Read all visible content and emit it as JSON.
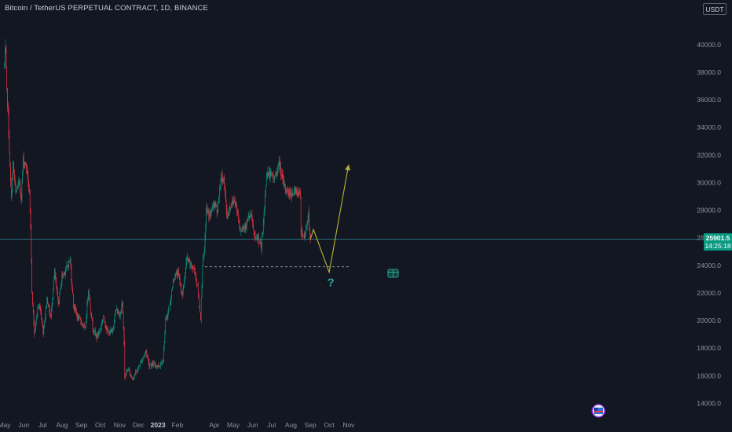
{
  "header": {
    "title": "Bitcoin / TetherUS PERPETUAL CONTRACT, 1D, BINANCE",
    "currency_button": "USDT"
  },
  "price_badge": {
    "price": "25901.5",
    "countdown": "14:25:18",
    "color": "#089981"
  },
  "projection": {
    "question_mark": "?",
    "support_level": 23900,
    "path": [
      {
        "date": "2023-09-01",
        "price": 25900
      },
      {
        "date": "2023-09-06",
        "price": 26600
      },
      {
        "date": "2023-10-01",
        "price": 23500
      },
      {
        "date": "2023-11-01",
        "price": 31300
      }
    ]
  },
  "chart_data": {
    "type": "candlestick",
    "title": "Bitcoin / TetherUS PERPETUAL CONTRACT, 1D, BINANCE",
    "interval": "1D",
    "y_axis_position": "right",
    "ylim": [
      13200,
      42800
    ],
    "y_ticks": [
      14000,
      16000,
      18000,
      20000,
      22000,
      24000,
      26000,
      28000,
      30000,
      32000,
      34000,
      36000,
      38000,
      40000
    ],
    "y_tick_labels": [
      "14000.0",
      "16000.0",
      "18000.0",
      "20000.0",
      "22000.0",
      "24000.0",
      "26000.0",
      "28000.0",
      "30000.0",
      "32000.0",
      "34000.0",
      "36000.0",
      "38000.0",
      "40000.0"
    ],
    "x_tick_labels": [
      "May",
      "Jun",
      "Jul",
      "Aug",
      "Sep",
      "Oct",
      "Nov",
      "Dec",
      "2023",
      "Feb",
      "Apr",
      "May",
      "Jun",
      "Jul",
      "Aug",
      "Sep",
      "Oct",
      "Nov"
    ],
    "x_tick_dates": [
      "2022-05-01",
      "2022-06-01",
      "2022-07-01",
      "2022-08-01",
      "2022-09-01",
      "2022-10-01",
      "2022-11-01",
      "2022-12-01",
      "2023-01-01",
      "2023-02-01",
      "2023-04-01",
      "2023-05-01",
      "2023-06-01",
      "2023-07-01",
      "2023-08-01",
      "2023-09-01",
      "2023-10-01",
      "2023-11-01"
    ],
    "up_color": "#089981",
    "down_color": "#f23645",
    "grid": false,
    "last_price": 25901.5,
    "close_path": [
      [
        "2022-05-01",
        38500
      ],
      [
        "2022-05-03",
        39600
      ],
      [
        "2022-05-05",
        36500
      ],
      [
        "2022-05-07",
        35000
      ],
      [
        "2022-05-10",
        31000
      ],
      [
        "2022-05-12",
        28800
      ],
      [
        "2022-05-15",
        31300
      ],
      [
        "2022-05-19",
        29200
      ],
      [
        "2022-05-24",
        30000
      ],
      [
        "2022-05-28",
        29000
      ],
      [
        "2022-05-31",
        31700
      ],
      [
        "2022-06-06",
        31000
      ],
      [
        "2022-06-10",
        29100
      ],
      [
        "2022-06-12",
        26500
      ],
      [
        "2022-06-14",
        22200
      ],
      [
        "2022-06-18",
        19000
      ],
      [
        "2022-06-23",
        20900
      ],
      [
        "2022-06-27",
        21000
      ],
      [
        "2022-07-02",
        19200
      ],
      [
        "2022-07-08",
        21600
      ],
      [
        "2022-07-14",
        20200
      ],
      [
        "2022-07-20",
        23500
      ],
      [
        "2022-07-26",
        21200
      ],
      [
        "2022-08-01",
        23200
      ],
      [
        "2022-08-08",
        23800
      ],
      [
        "2022-08-14",
        24400
      ],
      [
        "2022-08-19",
        21200
      ],
      [
        "2022-08-26",
        20200
      ],
      [
        "2022-09-01",
        19900
      ],
      [
        "2022-09-07",
        19300
      ],
      [
        "2022-09-12",
        22300
      ],
      [
        "2022-09-19",
        19500
      ],
      [
        "2022-09-25",
        18800
      ],
      [
        "2022-10-01",
        19400
      ],
      [
        "2022-10-06",
        20300
      ],
      [
        "2022-10-13",
        19100
      ],
      [
        "2022-10-20",
        19200
      ],
      [
        "2022-10-26",
        20800
      ],
      [
        "2022-11-01",
        20400
      ],
      [
        "2022-11-05",
        21300
      ],
      [
        "2022-11-08",
        18500
      ],
      [
        "2022-11-09",
        15900
      ],
      [
        "2022-11-14",
        16500
      ],
      [
        "2022-11-21",
        15800
      ],
      [
        "2022-11-28",
        16300
      ],
      [
        "2022-12-05",
        17000
      ],
      [
        "2022-12-13",
        17800
      ],
      [
        "2022-12-18",
        16800
      ],
      [
        "2022-12-26",
        16800
      ],
      [
        "2023-01-03",
        16700
      ],
      [
        "2023-01-09",
        17200
      ],
      [
        "2023-01-13",
        19900
      ],
      [
        "2023-01-20",
        21100
      ],
      [
        "2023-01-26",
        23100
      ],
      [
        "2023-02-02",
        23500
      ],
      [
        "2023-02-09",
        21800
      ],
      [
        "2023-02-16",
        24500
      ],
      [
        "2023-02-22",
        24000
      ],
      [
        "2023-03-01",
        23600
      ],
      [
        "2023-03-05",
        22400
      ],
      [
        "2023-03-10",
        20200
      ],
      [
        "2023-03-13",
        24100
      ],
      [
        "2023-03-16",
        25000
      ],
      [
        "2023-03-19",
        28000
      ],
      [
        "2023-03-25",
        27600
      ],
      [
        "2023-03-31",
        28500
      ],
      [
        "2023-04-06",
        28000
      ],
      [
        "2023-04-11",
        30300
      ],
      [
        "2023-04-16",
        30300
      ],
      [
        "2023-04-21",
        27500
      ],
      [
        "2023-04-26",
        28300
      ],
      [
        "2023-05-03",
        28800
      ],
      [
        "2023-05-08",
        27800
      ],
      [
        "2023-05-12",
        26600
      ],
      [
        "2023-05-20",
        26900
      ],
      [
        "2023-05-29",
        27700
      ],
      [
        "2023-06-05",
        25800
      ],
      [
        "2023-06-10",
        26000
      ],
      [
        "2023-06-15",
        25200
      ],
      [
        "2023-06-20",
        28300
      ],
      [
        "2023-06-23",
        30700
      ],
      [
        "2023-06-30",
        30500
      ],
      [
        "2023-07-06",
        30300
      ],
      [
        "2023-07-13",
        31400
      ],
      [
        "2023-07-20",
        29900
      ],
      [
        "2023-07-27",
        29300
      ],
      [
        "2023-08-03",
        29200
      ],
      [
        "2023-08-10",
        29400
      ],
      [
        "2023-08-16",
        29100
      ],
      [
        "2023-08-17",
        26600
      ],
      [
        "2023-08-22",
        26000
      ],
      [
        "2023-08-29",
        27700
      ],
      [
        "2023-08-31",
        25900
      ],
      [
        "2023-09-01",
        25901.5
      ]
    ]
  }
}
